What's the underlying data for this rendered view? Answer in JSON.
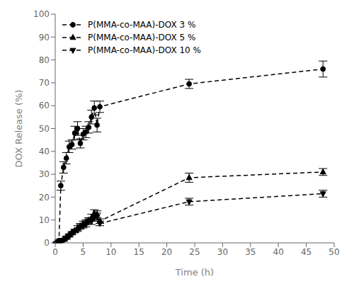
{
  "chart_data": {
    "type": "line",
    "x_label": "Time (h)",
    "y_label": "DOX Release (%)",
    "xlim": [
      0,
      50
    ],
    "ylim": [
      0,
      100
    ],
    "xticks": [
      0,
      5,
      10,
      15,
      20,
      25,
      30,
      35,
      40,
      45,
      50
    ],
    "yticks": [
      0,
      10,
      20,
      30,
      40,
      50,
      60,
      70,
      80,
      90,
      100
    ],
    "grid": false,
    "legend": "upper left",
    "color": "#000000",
    "line_style": "dashed",
    "x": [
      0.33,
      0.5,
      0.67,
      1.0,
      1.5,
      2.0,
      2.5,
      3.0,
      3.5,
      4.0,
      4.5,
      5.0,
      5.5,
      6.0,
      6.5,
      7.0,
      7.5,
      8.0,
      24.0,
      48.0
    ],
    "series": [
      {
        "name": "P(MMA-co-MAA)-DOX 3 %",
        "marker": "circle",
        "values": [
          0.2,
          0.5,
          1.0,
          25.0,
          33.0,
          37.0,
          42.0,
          43.0,
          48.0,
          50.0,
          43.5,
          47.5,
          48.5,
          50.5,
          55.0,
          59.0,
          51.5,
          59.5,
          69.5,
          76.0
        ],
        "yerr": [
          0.2,
          0.3,
          0.5,
          2.0,
          2.5,
          2.5,
          2.5,
          2.0,
          3.0,
          3.0,
          2.0,
          2.5,
          2.5,
          2.5,
          3.0,
          3.0,
          3.0,
          2.5,
          2.0,
          3.5
        ]
      },
      {
        "name": "P(MMA-co-MAA)-DOX 5 %",
        "marker": "triangle-up",
        "values": [
          0.1,
          0.2,
          0.3,
          0.8,
          1.5,
          2.5,
          3.5,
          4.5,
          5.5,
          6.5,
          7.5,
          8.5,
          9.0,
          10.0,
          11.0,
          13.0,
          12.5,
          9.5,
          28.5,
          31.0
        ],
        "yerr": [
          0.1,
          0.2,
          0.2,
          0.3,
          0.5,
          0.5,
          0.5,
          0.5,
          0.5,
          1.0,
          1.0,
          1.0,
          1.0,
          1.0,
          1.5,
          1.5,
          1.5,
          1.0,
          2.0,
          1.5
        ]
      },
      {
        "name": "P(MMA-co-MAA)-DOX 10 %",
        "marker": "triangle-down",
        "values": [
          0.1,
          0.2,
          0.3,
          0.7,
          1.2,
          2.0,
          3.0,
          4.0,
          5.0,
          5.5,
          7.0,
          7.5,
          8.0,
          9.5,
          9.5,
          11.0,
          11.5,
          8.5,
          18.0,
          21.5
        ],
        "yerr": [
          0.1,
          0.2,
          0.2,
          0.3,
          0.5,
          0.5,
          0.5,
          0.5,
          0.5,
          0.5,
          1.0,
          1.0,
          1.0,
          1.0,
          1.5,
          1.5,
          1.5,
          1.0,
          1.5,
          1.5
        ]
      }
    ]
  }
}
